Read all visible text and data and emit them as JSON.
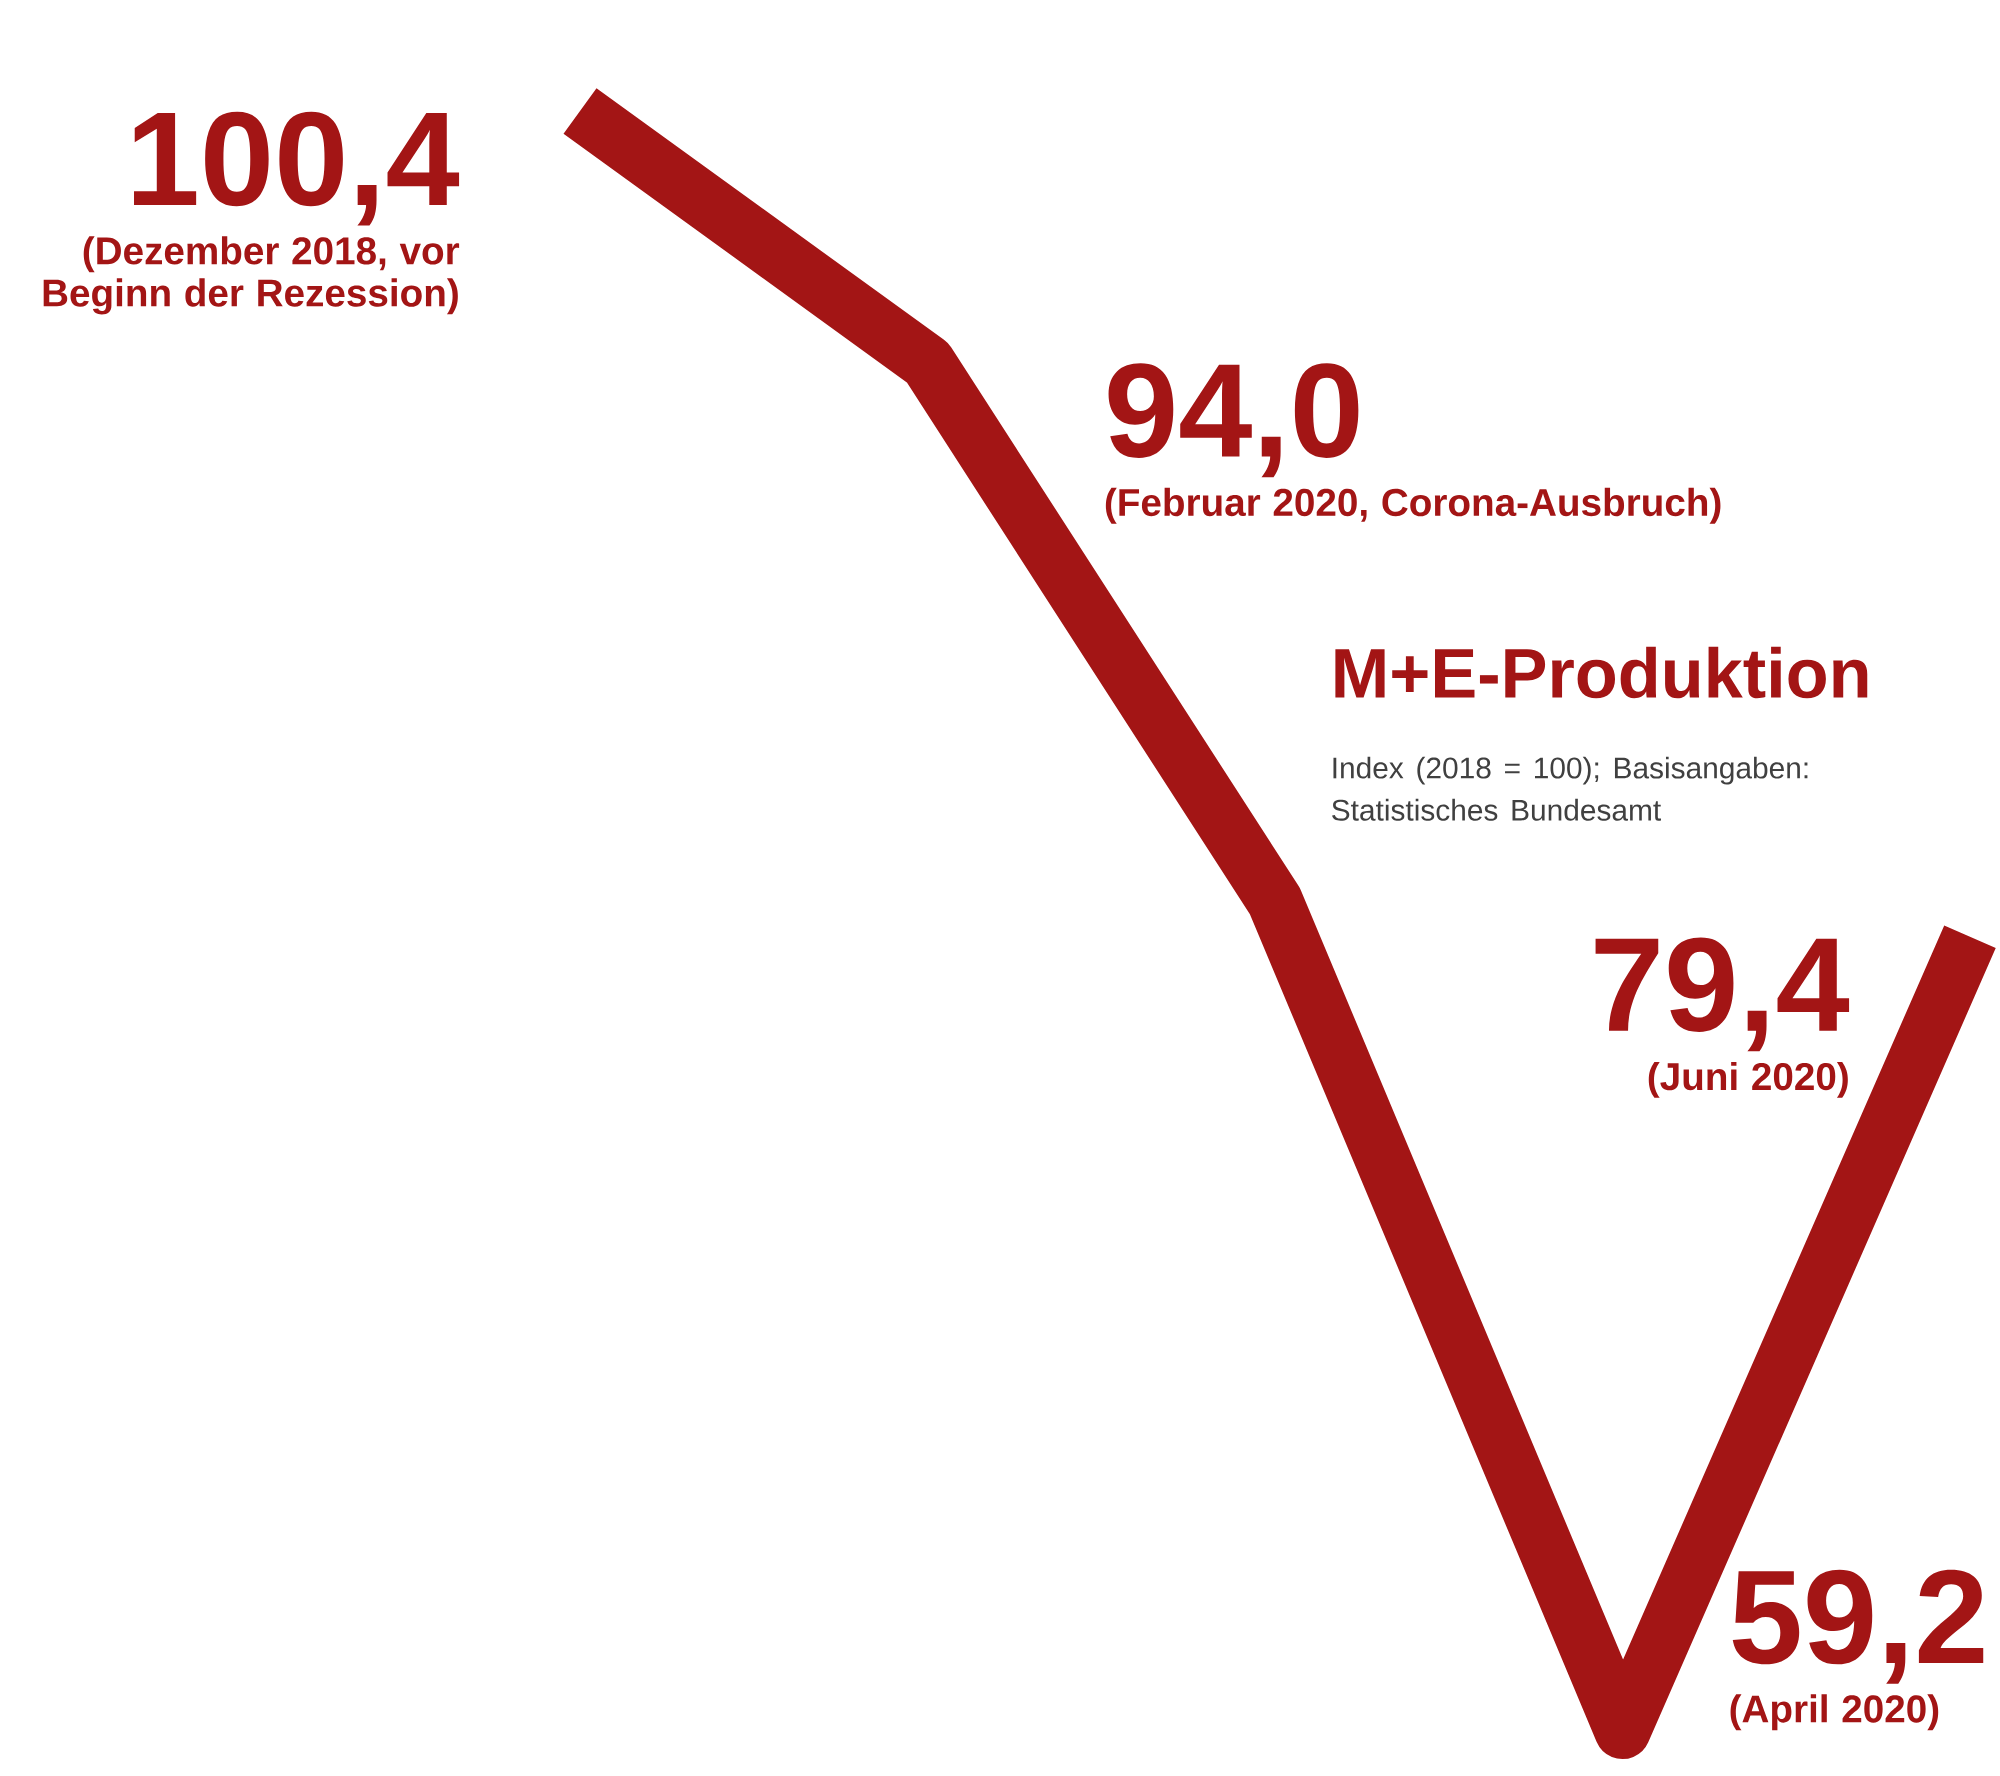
{
  "chart_data": {
    "type": "line",
    "title": "M+E-Produktion",
    "subtitle": "Index (2018 = 100); Basisangaben: Statistisches Bundesamt",
    "categories": [
      null,
      null,
      null,
      null,
      null
    ],
    "series": [
      {
        "color": "#a31515",
        "values": [
          100.4,
          94.0,
          80.3,
          59.2,
          79.4
        ],
        "value_labels": [
          "100,4",
          "94,0",
          null,
          "59,2",
          "79,4"
        ]
      }
    ],
    "annotations": [
      "(Dezember 2018, vor Beginn der Rezession)",
      "(Februar 2020, Corona-Ausbruch)",
      "(April 2020)",
      "(Juni 2020)"
    ],
    "marker": "none",
    "line_style": "solid"
  }
}
